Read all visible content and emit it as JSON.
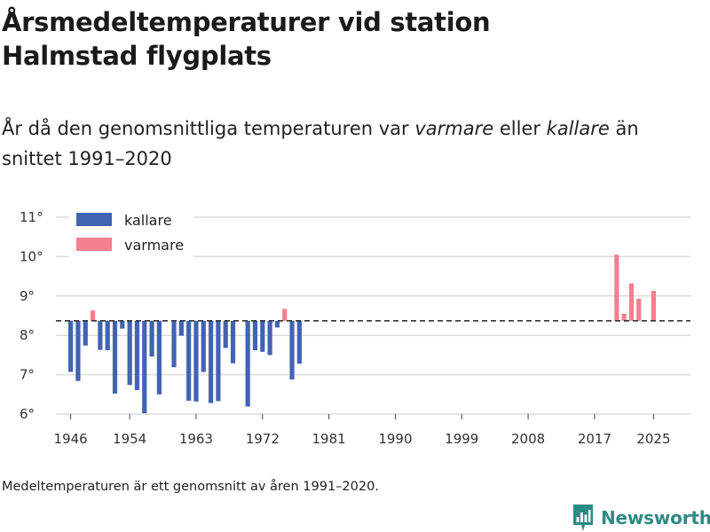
{
  "header": {
    "title_line1": "Årsmedeltemperaturer vid station",
    "title_line2": "Halmstad flygplats",
    "subtitle_pre": "År då den genomsnittliga temperaturen var ",
    "subtitle_warm": "varmare",
    "subtitle_mid": " eller ",
    "subtitle_cold": "kallare",
    "subtitle_post": " än snittet 1991–2020"
  },
  "footnote": "Medeltemperaturen är ett genomsnitt av åren 1991–2020.",
  "brand": {
    "name": "Newsworthy",
    "icon": "newsworthy-logo-icon"
  },
  "colors": {
    "colder": "#4263b3",
    "warmer": "#f47f8e",
    "baseline": "#333333",
    "grid": "#dcdcdc"
  },
  "chart_data": {
    "type": "bar",
    "title": "Årsmedeltemperaturer vid station Halmstad flygplats",
    "xlabel": "",
    "ylabel": "",
    "baseline": 8.37,
    "baseline_note": "genomsnitt 1991–2020",
    "ylim": [
      6,
      11
    ],
    "xlim": [
      1944,
      2030
    ],
    "y_ticks": [
      6,
      7,
      8,
      9,
      10,
      11
    ],
    "y_tick_suffix": "°",
    "x_ticks": [
      "1946",
      "1954",
      "1963",
      "1972",
      "1981",
      "1990",
      "1999",
      "2008",
      "2017",
      "2025"
    ],
    "legend": {
      "position": "top-left",
      "entries": [
        {
          "label": "kallare",
          "series": "colder"
        },
        {
          "label": "varmare",
          "series": "warmer"
        }
      ]
    },
    "years": [
      1946,
      1947,
      1948,
      1949,
      1950,
      1951,
      1952,
      1953,
      1954,
      1955,
      1956,
      1957,
      1958,
      1959,
      1960,
      1961,
      1962,
      1963,
      1964,
      1965,
      1966,
      1967,
      1968,
      1969,
      1970,
      1971,
      1972,
      1973,
      1974,
      1975,
      1976,
      1977,
      2020,
      2021,
      2022,
      2023,
      2025
    ],
    "values": [
      7.07,
      6.84,
      7.74,
      8.63,
      7.63,
      7.62,
      6.52,
      8.17,
      6.74,
      6.61,
      6.02,
      7.46,
      6.5,
      8.37,
      7.19,
      7.99,
      6.34,
      6.32,
      7.07,
      6.28,
      6.33,
      7.68,
      7.29,
      8.37,
      6.19,
      7.62,
      7.58,
      7.5,
      8.2,
      8.67,
      6.88,
      7.28,
      10.05,
      8.55,
      9.32,
      8.93,
      9.13
    ]
  }
}
